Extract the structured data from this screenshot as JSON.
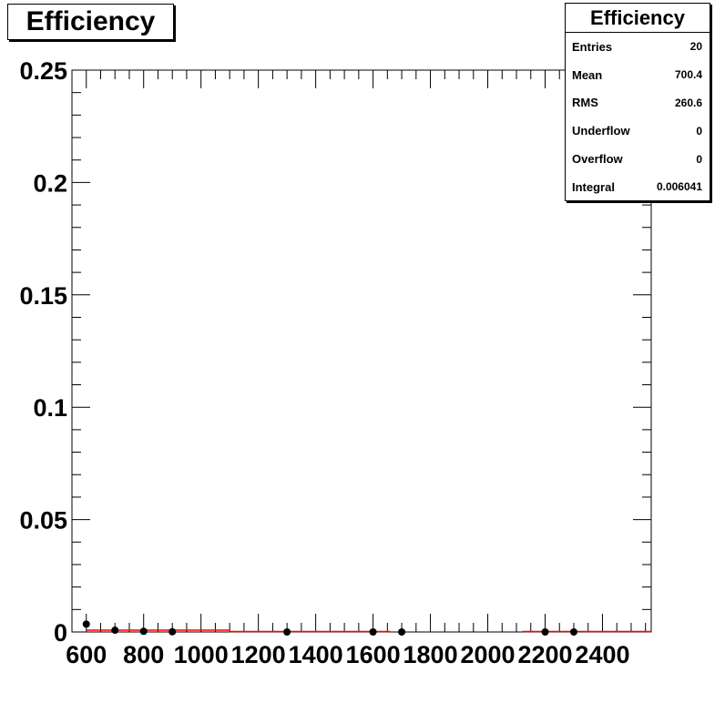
{
  "title": "Efficiency",
  "stats": {
    "title": "Efficiency",
    "rows": [
      {
        "label": "Entries",
        "value": "20"
      },
      {
        "label": "Mean",
        "value": "700.4"
      },
      {
        "label": "RMS",
        "value": "260.6"
      },
      {
        "label": "Underflow",
        "value": "0"
      },
      {
        "label": "Overflow",
        "value": "0"
      },
      {
        "label": "Integral",
        "value": "0.006041"
      }
    ]
  },
  "chart_data": {
    "type": "scatter",
    "title": "Efficiency",
    "xlabel": "",
    "ylabel": "",
    "xlim": [
      550,
      2570
    ],
    "ylim": [
      0,
      0.25
    ],
    "x_ticks": [
      600,
      800,
      1000,
      1200,
      1400,
      1600,
      1800,
      2000,
      2200,
      2400
    ],
    "y_ticks": [
      0,
      0.05,
      0.1,
      0.15,
      0.2,
      0.25
    ],
    "y_tick_labels": [
      "0",
      "0.05",
      "0.1",
      "0.15",
      "0.2",
      "0.25"
    ],
    "points": [
      {
        "x": 600,
        "y": 0.0035
      },
      {
        "x": 700,
        "y": 0.0008
      },
      {
        "x": 800,
        "y": 0.0003
      },
      {
        "x": 900,
        "y": 0.0001
      },
      {
        "x": 1300,
        "y": 0.0
      },
      {
        "x": 1600,
        "y": 0.0
      },
      {
        "x": 1700,
        "y": 0.0
      },
      {
        "x": 2200,
        "y": 0.0
      },
      {
        "x": 2300,
        "y": 0.0
      }
    ],
    "fit_segments": [
      {
        "x0": 600,
        "x1": 1100,
        "y": 0.0008
      },
      {
        "x0": 1100,
        "x1": 1660,
        "y": 0.0002
      },
      {
        "x0": 2120,
        "x1": 2570,
        "y": 0.0002
      }
    ],
    "marker_color": "#000000",
    "fit_color": "#ff0000",
    "grid": false,
    "legend": "top-right"
  }
}
